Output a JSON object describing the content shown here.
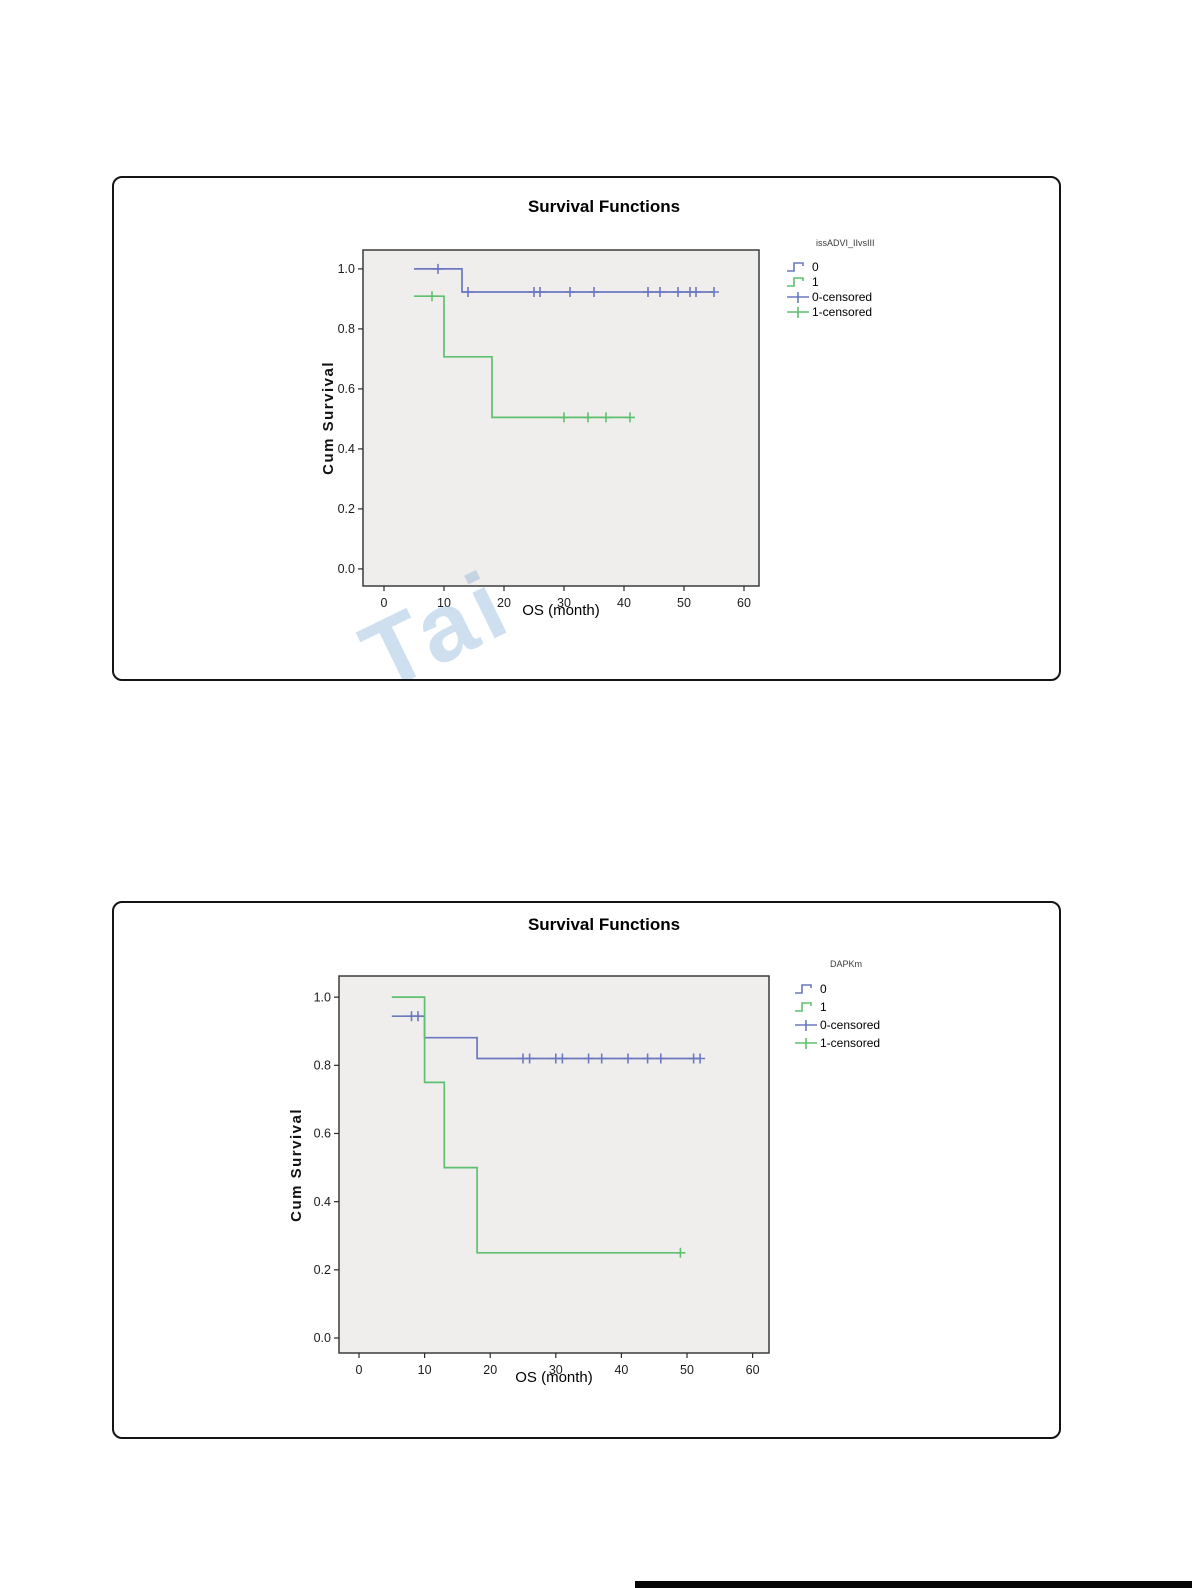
{
  "page": {
    "background": "#ffffff",
    "bottom_bar_color": "#060606"
  },
  "chart_data": [
    {
      "type": "line",
      "subtype": "kaplan-meier-step",
      "title": "Survival Functions",
      "xlabel": "OS (month)",
      "ylabel": "Cum Survival",
      "legend": {
        "title": "issADVI_IIvsIII",
        "position": "right",
        "items": [
          {
            "label": "0",
            "color": "#6b79c0",
            "glyph": "step"
          },
          {
            "label": "1",
            "color": "#5fc06f",
            "glyph": "step"
          },
          {
            "label": "0-censored",
            "color": "#6b79c0",
            "glyph": "censor"
          },
          {
            "label": "1-censored",
            "color": "#5fc06f",
            "glyph": "censor"
          }
        ]
      },
      "grid": false,
      "xlim": [
        -3.5,
        62.5
      ],
      "ylim": [
        -0.057,
        1.063
      ],
      "xticks": [
        0,
        10,
        20,
        30,
        40,
        50,
        60
      ],
      "yticks": [
        {
          "v": 0.0,
          "label": "0.0"
        },
        {
          "v": 0.2,
          "label": "0.2"
        },
        {
          "v": 0.4,
          "label": "0.4"
        },
        {
          "v": 0.6,
          "label": "0.6"
        },
        {
          "v": 0.8,
          "label": "0.8"
        },
        {
          "v": 1.0,
          "label": "1.0"
        }
      ],
      "colors": {
        "plot_bg": "#efeeec",
        "frame": "#3c3c3c"
      },
      "series": [
        {
          "name": "0",
          "color": "#6b79c0",
          "points": [
            [
              5,
              1.0
            ],
            [
              13,
              1.0
            ],
            [
              13,
              0.923
            ],
            [
              55,
              0.923
            ]
          ],
          "censored": [
            [
              9,
              1.0
            ],
            [
              14,
              0.923
            ],
            [
              25,
              0.923
            ],
            [
              26,
              0.923
            ],
            [
              31,
              0.923
            ],
            [
              35,
              0.923
            ],
            [
              44,
              0.923
            ],
            [
              46,
              0.923
            ],
            [
              49,
              0.923
            ],
            [
              51,
              0.923
            ],
            [
              52,
              0.923
            ],
            [
              55,
              0.923
            ]
          ]
        },
        {
          "name": "1",
          "color": "#5fc06f",
          "points": [
            [
              5,
              0.909
            ],
            [
              10,
              0.909
            ],
            [
              10,
              0.707
            ],
            [
              18,
              0.707
            ],
            [
              18,
              0.505
            ],
            [
              41,
              0.505
            ]
          ],
          "censored": [
            [
              8,
              0.909
            ],
            [
              30,
              0.505
            ],
            [
              34,
              0.505
            ],
            [
              37,
              0.505
            ],
            [
              41,
              0.505
            ]
          ]
        }
      ],
      "watermark": "Tai"
    },
    {
      "type": "line",
      "subtype": "kaplan-meier-step",
      "title": "Survival Functions",
      "xlabel": "OS (month)",
      "ylabel": "Cum Survival",
      "legend": {
        "title": "DAPKm",
        "position": "right",
        "items": [
          {
            "label": "0",
            "color": "#6b79c0",
            "glyph": "step"
          },
          {
            "label": "1",
            "color": "#5fc06f",
            "glyph": "step"
          },
          {
            "label": "0-censored",
            "color": "#6b79c0",
            "glyph": "censor"
          },
          {
            "label": "1-censored",
            "color": "#5fc06f",
            "glyph": "censor"
          }
        ]
      },
      "grid": false,
      "xlim": [
        -3.05,
        62.5
      ],
      "ylim": [
        -0.044,
        1.062
      ],
      "xticks": [
        0,
        10,
        20,
        30,
        40,
        50,
        60
      ],
      "yticks": [
        {
          "v": 0.0,
          "label": "0.0"
        },
        {
          "v": 0.2,
          "label": "0.2"
        },
        {
          "v": 0.4,
          "label": "0.4"
        },
        {
          "v": 0.6,
          "label": "0.6"
        },
        {
          "v": 0.8,
          "label": "0.8"
        },
        {
          "v": 1.0,
          "label": "1.0"
        }
      ],
      "colors": {
        "plot_bg": "#efeeec",
        "frame": "#3c3c3c"
      },
      "series": [
        {
          "name": "0",
          "color": "#6b79c0",
          "points": [
            [
              5,
              0.944
            ],
            [
              10,
              0.944
            ],
            [
              10,
              0.881
            ],
            [
              18,
              0.881
            ],
            [
              18,
              0.82
            ],
            [
              52,
              0.82
            ]
          ],
          "censored": [
            [
              8,
              0.944
            ],
            [
              9,
              0.944
            ],
            [
              25,
              0.82
            ],
            [
              26,
              0.82
            ],
            [
              30,
              0.82
            ],
            [
              31,
              0.82
            ],
            [
              35,
              0.82
            ],
            [
              37,
              0.82
            ],
            [
              41,
              0.82
            ],
            [
              44,
              0.82
            ],
            [
              46,
              0.82
            ],
            [
              51,
              0.82
            ],
            [
              52,
              0.82
            ]
          ]
        },
        {
          "name": "1",
          "color": "#5fc06f",
          "points": [
            [
              5,
              1.0
            ],
            [
              10,
              1.0
            ],
            [
              10,
              0.75
            ],
            [
              13,
              0.75
            ],
            [
              13,
              0.5
            ],
            [
              18,
              0.5
            ],
            [
              18,
              0.25
            ],
            [
              49,
              0.25
            ]
          ],
          "censored": [
            [
              49,
              0.25
            ]
          ]
        }
      ],
      "watermark": ""
    }
  ]
}
